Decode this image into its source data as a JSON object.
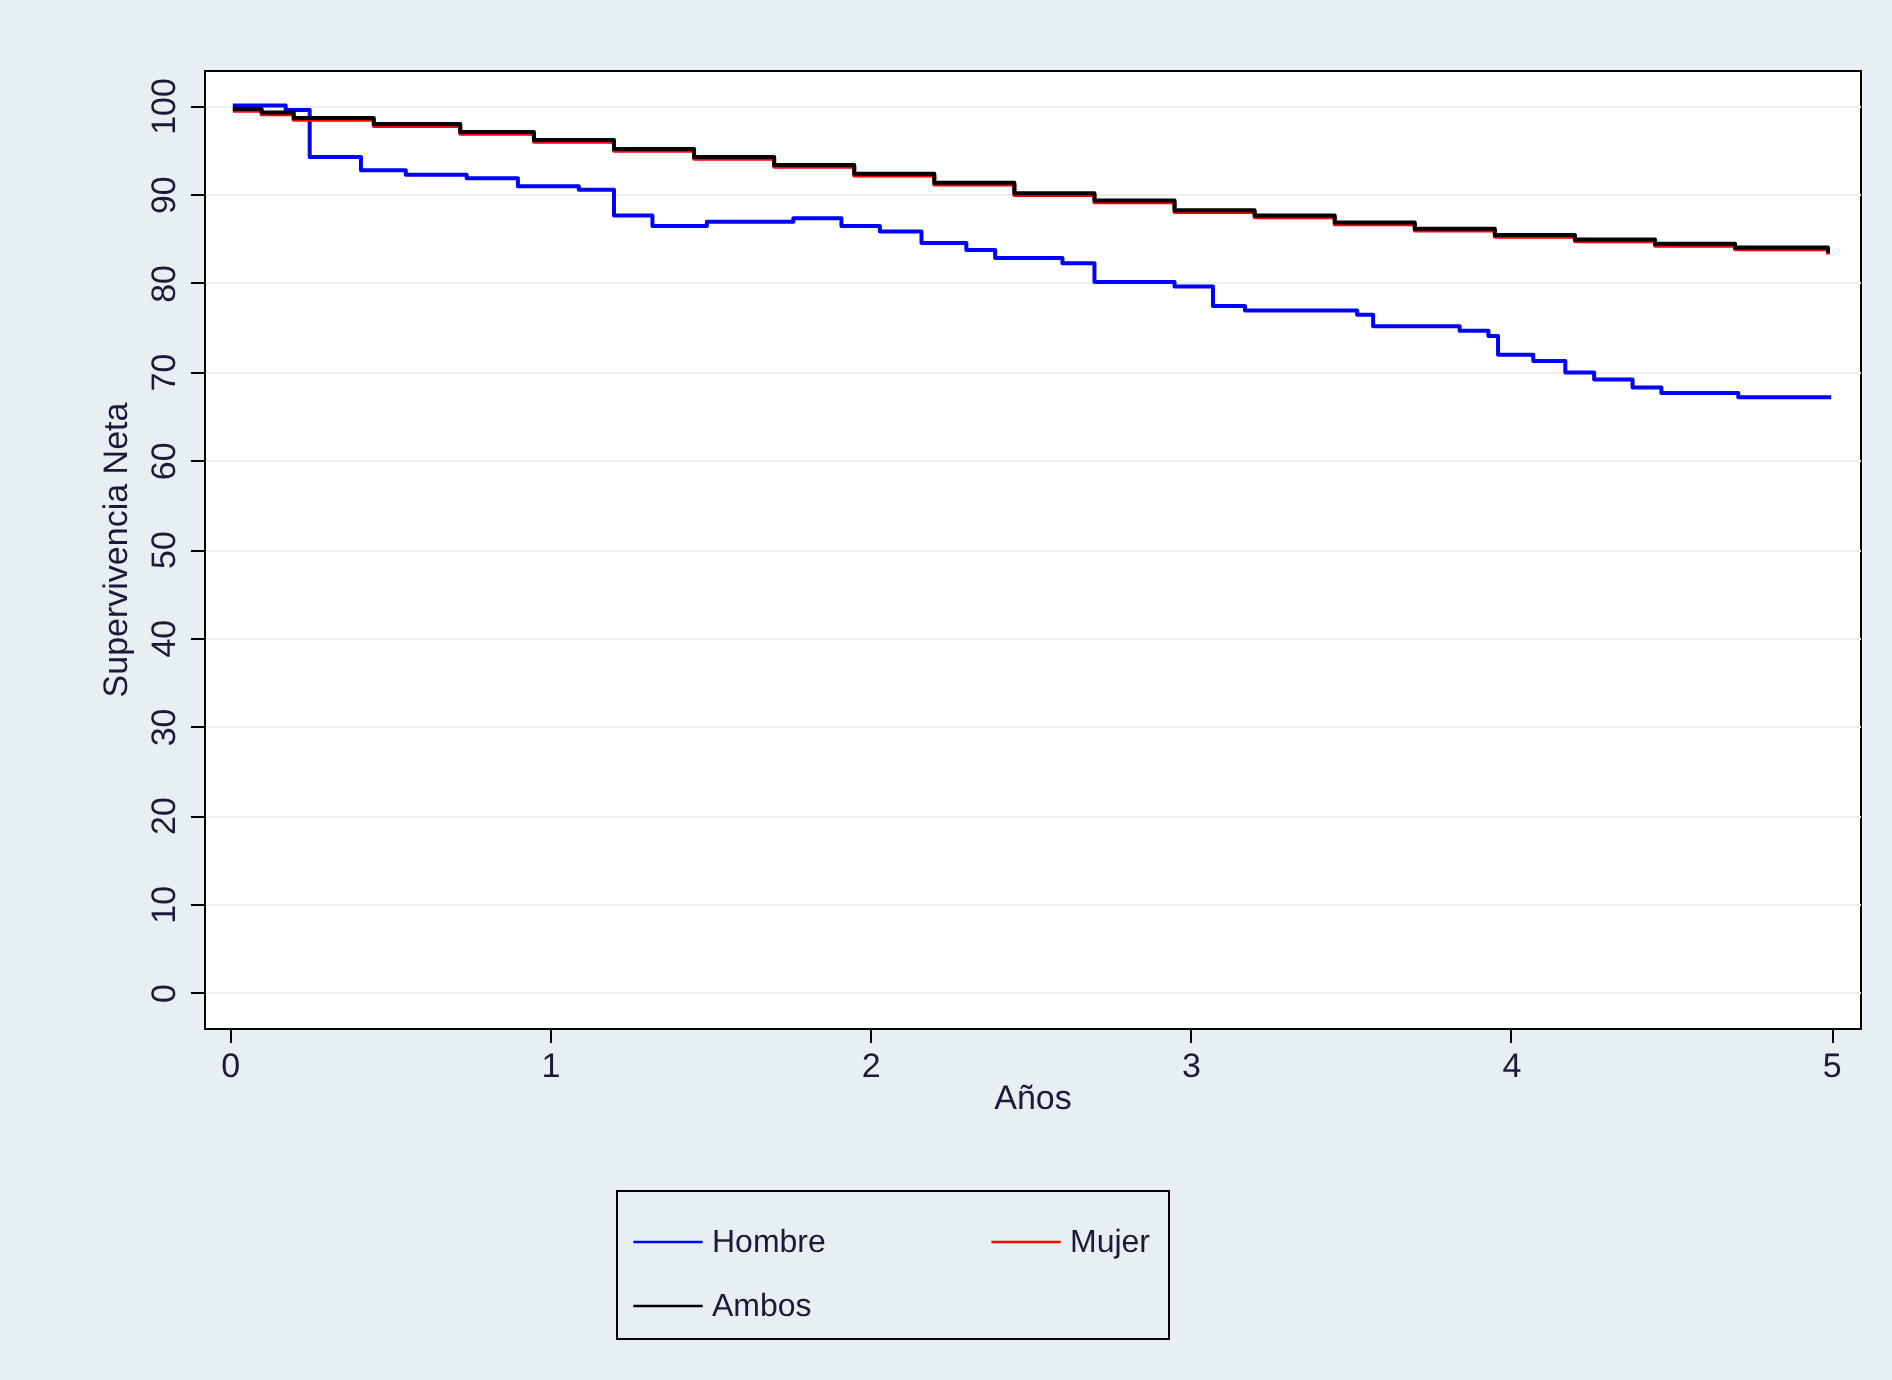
{
  "chart_data": {
    "type": "step",
    "xlabel": "Años",
    "ylabel": "Supervivencia Neta",
    "xlim": [
      -0.08,
      5.09
    ],
    "ylim": [
      -4,
      104
    ],
    "xticks": [
      0,
      1,
      2,
      3,
      4,
      5
    ],
    "yticks": [
      0,
      10,
      20,
      30,
      40,
      50,
      60,
      70,
      80,
      90,
      100
    ],
    "grid": "y",
    "legend": "bottom",
    "series": [
      {
        "name": "Hombre",
        "color": "#0000ff",
        "x": [
          0.01,
          0.175,
          0.25,
          0.41,
          0.55,
          0.74,
          0.9,
          1.09,
          1.2,
          1.32,
          1.49,
          1.76,
          1.91,
          2.03,
          2.16,
          2.3,
          2.39,
          2.6,
          2.7,
          2.95,
          3.07,
          3.17,
          3.52,
          3.57,
          3.84,
          3.93,
          3.96,
          4.07,
          4.17,
          4.26,
          4.38,
          4.47,
          4.71,
          5.0
        ],
        "values": [
          100,
          99.5,
          94.2,
          92.7,
          92.2,
          91.8,
          90.9,
          90.5,
          87.6,
          86.4,
          86.9,
          87.3,
          86.4,
          85.8,
          84.5,
          83.7,
          82.8,
          82.2,
          80.1,
          79.6,
          77.4,
          76.9,
          76.4,
          75.1,
          74.6,
          74.0,
          71.9,
          71.2,
          69.9,
          69.1,
          68.2,
          67.6,
          67.1,
          67.1
        ]
      },
      {
        "name": "Mujer",
        "color": "#ff0000",
        "x": [
          0.01,
          0.1,
          0.2,
          0.45,
          0.72,
          0.95,
          1.2,
          1.45,
          1.7,
          1.95,
          2.2,
          2.45,
          2.7,
          2.95,
          3.2,
          3.45,
          3.7,
          3.95,
          4.2,
          4.45,
          4.7,
          4.99
        ],
        "values": [
          99.4,
          99.0,
          98.4,
          97.7,
          96.8,
          95.9,
          94.9,
          94.0,
          93.1,
          92.1,
          91.1,
          89.9,
          89.1,
          88.0,
          87.4,
          86.6,
          85.9,
          85.2,
          84.7,
          84.2,
          83.8,
          83.2
        ]
      },
      {
        "name": "Ambos",
        "color": "#000000",
        "x": [
          0.01,
          0.1,
          0.2,
          0.45,
          0.72,
          0.95,
          1.2,
          1.45,
          1.7,
          1.95,
          2.2,
          2.45,
          2.7,
          2.95,
          3.2,
          3.45,
          3.7,
          3.95,
          4.2,
          4.45,
          4.7,
          4.99
        ],
        "values": [
          99.6,
          99.2,
          98.6,
          97.9,
          97.0,
          96.1,
          95.1,
          94.2,
          93.3,
          92.3,
          91.3,
          90.1,
          89.3,
          88.2,
          87.6,
          86.8,
          86.1,
          85.4,
          84.9,
          84.4,
          84.0,
          83.4
        ]
      }
    ]
  }
}
